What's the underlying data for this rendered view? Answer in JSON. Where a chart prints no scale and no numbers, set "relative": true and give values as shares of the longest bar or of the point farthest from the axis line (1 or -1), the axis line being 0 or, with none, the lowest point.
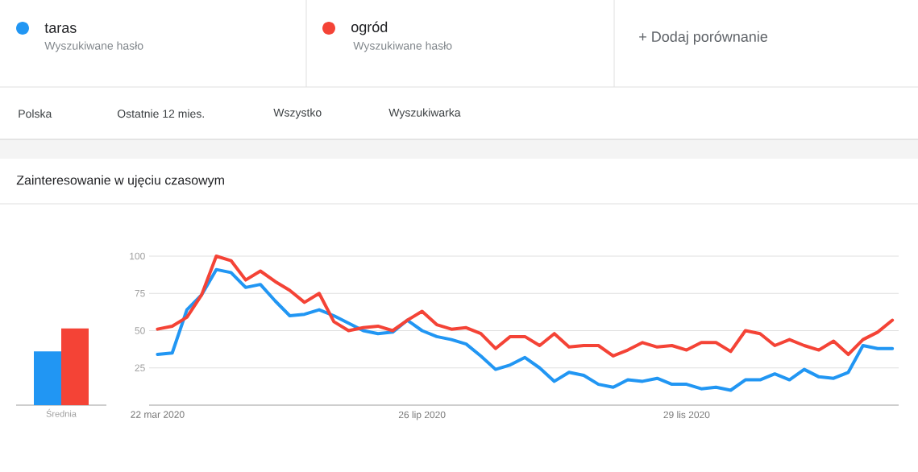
{
  "chart_data": [
    {
      "type": "bar",
      "title": "Zainteresowanie w ujęciu czasowym",
      "categories": [
        "Średnia"
      ],
      "relative": true,
      "series": [
        {
          "color": "#2196f3",
          "values": [
            0.7
          ]
        },
        {
          "color": "#f44336",
          "values": [
            1
          ]
        }
      ]
    },
    {
      "type": "line",
      "annotations": [
        "Wyszukiwane hasło",
        "Wyszukiwane hasło",
        "+ Dodaj porównanie",
        "Polska",
        "Ostatnie 12 mies.",
        "Wszystko",
        "Wyszukiwarka"
      ],
      "x": [
        "2020-03-22",
        "2020-03-29",
        "2020-04-05",
        "2020-04-12",
        "2020-04-19",
        "2020-04-26",
        "2020-05-03",
        "2020-05-10",
        "2020-05-17",
        "2020-05-24",
        "2020-05-31",
        "2020-06-07",
        "2020-06-14",
        "2020-06-21",
        "2020-06-28",
        "2020-07-05",
        "2020-07-12",
        "2020-07-19",
        "2020-07-26",
        "2020-08-02",
        "2020-08-09",
        "2020-08-16",
        "2020-08-23",
        "2020-08-30",
        "2020-09-06",
        "2020-09-13",
        "2020-09-20",
        "2020-09-27",
        "2020-10-04",
        "2020-10-11",
        "2020-10-18",
        "2020-10-25",
        "2020-11-01",
        "2020-11-08",
        "2020-11-15",
        "2020-11-22",
        "2020-11-29",
        "2020-12-06",
        "2020-12-13",
        "2020-12-20",
        "2020-12-27",
        "2021-01-03",
        "2021-01-10",
        "2021-01-17",
        "2021-01-24",
        "2021-01-31",
        "2021-02-07",
        "2021-02-14",
        "2021-02-21",
        "2021-02-28",
        "2021-03-07"
      ],
      "xlim": [
        "2020-03-18",
        "2021-03-10"
      ],
      "xticks": [
        {
          "value": "2020-03-22",
          "label": "22 mar 2020"
        },
        {
          "value": "2020-07-26",
          "label": "26 lip 2020"
        },
        {
          "value": "2020-11-29",
          "label": "29 lis 2020"
        }
      ],
      "ylim": [
        0,
        100
      ],
      "yticks": [
        25,
        50,
        75,
        100
      ],
      "grid": "y",
      "legend": "top",
      "series": [
        {
          "name": "taras",
          "color": "#2196f3",
          "values": [
            34,
            35,
            64,
            74,
            91,
            89,
            79,
            81,
            70,
            60,
            61,
            64,
            60,
            55,
            50,
            48,
            49,
            57,
            50,
            46,
            44,
            41,
            33,
            24,
            27,
            32,
            25,
            16,
            22,
            20,
            14,
            12,
            17,
            16,
            18,
            14,
            14,
            11,
            12,
            10,
            17,
            17,
            21,
            17,
            24,
            19,
            18,
            22,
            40,
            38,
            38
          ]
        },
        {
          "name": "ogród",
          "color": "#f44336",
          "values": [
            51,
            53,
            59,
            74,
            100,
            97,
            84,
            90,
            83,
            77,
            69,
            75,
            56,
            50,
            52,
            53,
            50,
            57,
            63,
            54,
            51,
            52,
            48,
            38,
            46,
            46,
            40,
            48,
            39,
            40,
            40,
            33,
            37,
            42,
            39,
            40,
            37,
            42,
            42,
            36,
            50,
            48,
            40,
            44,
            40,
            37,
            43,
            34,
            44,
            49,
            57
          ]
        }
      ]
    }
  ]
}
